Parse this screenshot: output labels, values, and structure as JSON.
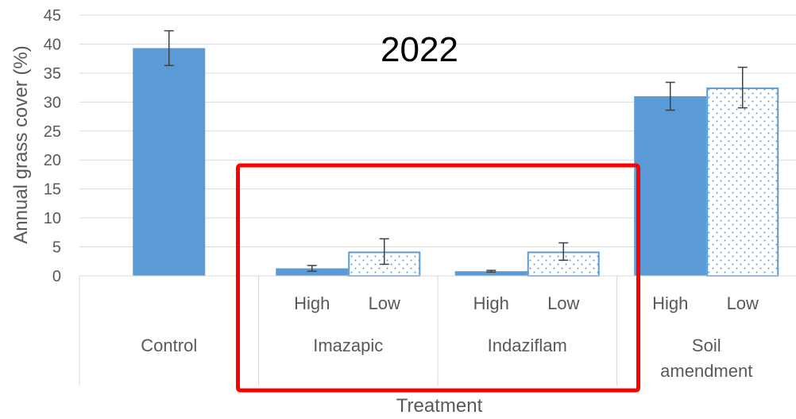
{
  "chart_data": {
    "type": "bar",
    "title": "2022",
    "xlabel": "Treatment",
    "ylabel": "Annual grass cover (%)",
    "ylim": [
      0,
      45
    ],
    "yticks": [
      0,
      5,
      10,
      15,
      20,
      25,
      30,
      35,
      40,
      45
    ],
    "grid": true,
    "groups": [
      {
        "label": "Control",
        "bars": [
          {
            "sublabel": "",
            "value": 39.3,
            "error": 3.0,
            "pattern": "solid"
          }
        ]
      },
      {
        "label": "Imazapic",
        "bars": [
          {
            "sublabel": "High",
            "value": 1.3,
            "error": 0.5,
            "pattern": "solid"
          },
          {
            "sublabel": "Low",
            "value": 4.2,
            "error": 2.2,
            "pattern": "dotted"
          }
        ]
      },
      {
        "label": "Indaziflam",
        "bars": [
          {
            "sublabel": "High",
            "value": 0.8,
            "error": 0.15,
            "pattern": "solid"
          },
          {
            "sublabel": "Low",
            "value": 4.2,
            "error": 1.5,
            "pattern": "dotted"
          }
        ]
      },
      {
        "label": "Soil amendment",
        "label_lines": [
          "Soil",
          "amendment"
        ],
        "bars": [
          {
            "sublabel": "High",
            "value": 31.0,
            "error": 2.4,
            "pattern": "solid"
          },
          {
            "sublabel": "Low",
            "value": 32.5,
            "error": 3.5,
            "pattern": "dotted"
          }
        ]
      }
    ],
    "colors": {
      "bar": "#5b9bd5",
      "grid": "#d9d9d9",
      "error": "#404040",
      "highlight": "#ff0000"
    },
    "highlight": {
      "groups": [
        "Imazapic",
        "Indaziflam"
      ]
    }
  }
}
